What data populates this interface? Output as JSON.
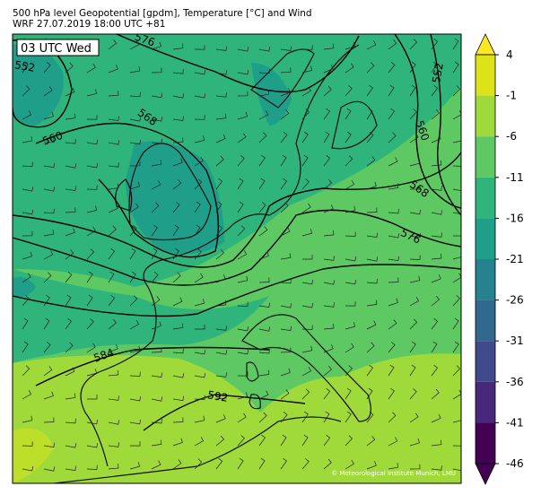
{
  "header": {
    "title": "500 hPa level Geopotential [gpdm], Temperature [°C] and Wind",
    "subtitle": "WRF 27.07.2019 18:00 UTC +81"
  },
  "map": {
    "time_label": "03 UTC Wed",
    "contour_labels": [
      "552",
      "576",
      "568",
      "560",
      "552",
      "560",
      "568",
      "576",
      "584",
      "592"
    ],
    "copyright": "© Meteorological Institute Munich, LMU"
  },
  "colorbar": {
    "ticks": [
      4,
      -1,
      -6,
      -11,
      -16,
      -21,
      -26,
      -31,
      -36,
      -41,
      -46
    ],
    "colors": [
      "#fde725",
      "#dde318",
      "#9fda3a",
      "#5ec962",
      "#2fb47c",
      "#1f9e89",
      "#26828e",
      "#31688e",
      "#3e4a89",
      "#482878",
      "#440154",
      "#440154"
    ]
  }
}
